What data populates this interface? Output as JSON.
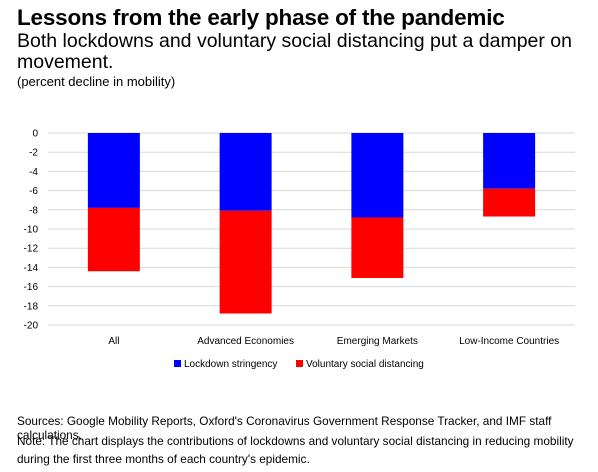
{
  "title": "Lessons from the early phase of the pandemic",
  "subtitle": "Both lockdowns and voluntary social distancing put a damper on movement.",
  "unit": "(percent decline in mobility)",
  "sources": "Sources: Google Mobility Reports, Oxford's Coronavirus Government Response Tracker, and IMF staff calculations.",
  "note": "Note: The chart displays the contributions of lockdowns and voluntary social distancing in reducing mobility during the first three months of each country's epidemic.",
  "chart_data": {
    "type": "bar",
    "stacked": true,
    "categories": [
      "All",
      "Advanced Economies",
      "Emerging Markets",
      "Low-Income Countries"
    ],
    "series": [
      {
        "name": "Lockdown stringency",
        "color": "#0000FF",
        "values": [
          -7.8,
          -8.1,
          -8.8,
          -5.8
        ]
      },
      {
        "name": "Voluntary social distancing",
        "color": "#FF0000",
        "values": [
          -6.6,
          -10.7,
          -6.3,
          -2.9
        ]
      }
    ],
    "ylim": [
      -20,
      0
    ],
    "yticks": [
      0,
      -2,
      -4,
      -6,
      -8,
      -10,
      -12,
      -14,
      -16,
      -18,
      -20
    ],
    "grid": true,
    "legend_position": "bottom"
  }
}
